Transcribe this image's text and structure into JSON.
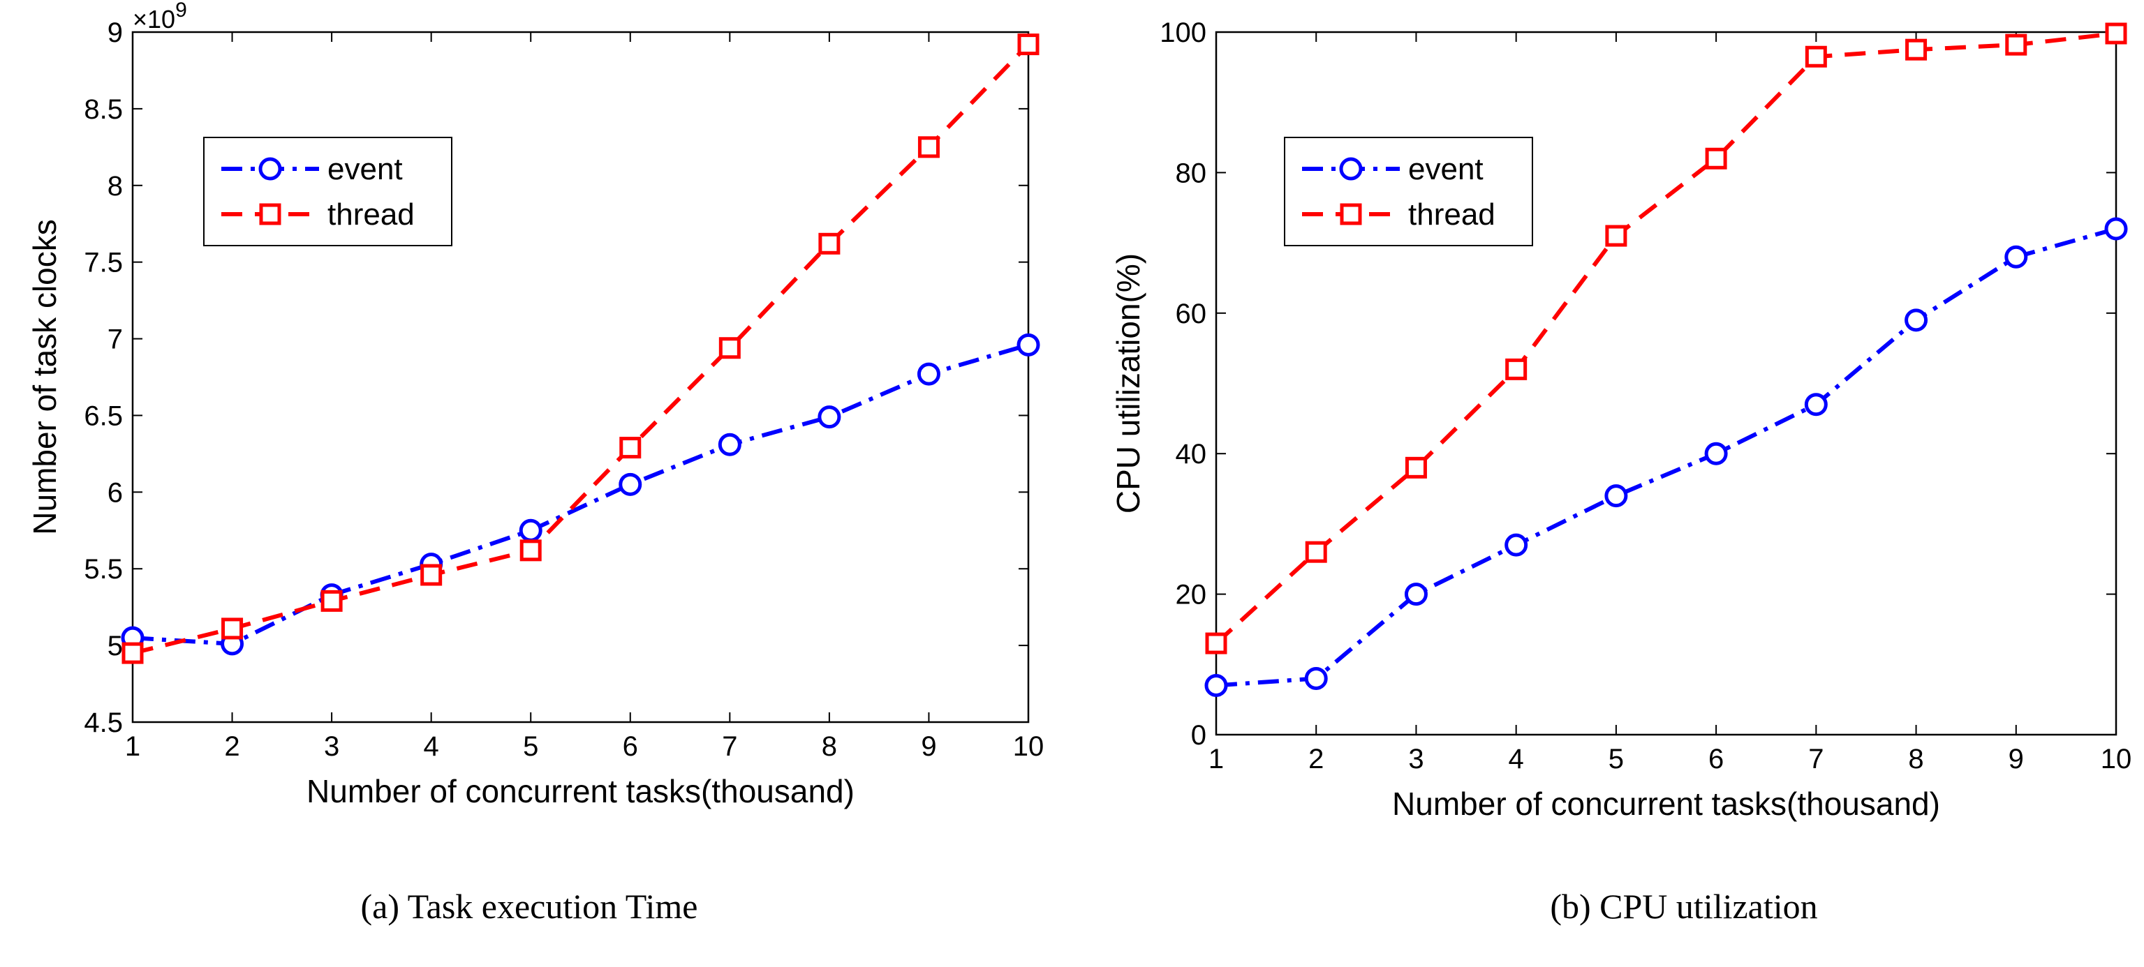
{
  "chart_data": [
    {
      "type": "line",
      "caption": "(a) Task execution Time",
      "xlabel": "Number of concurrent tasks(thousand)",
      "ylabel": "Number of task clocks",
      "y_exponent": "×10",
      "y_exponent_power": "9",
      "x": [
        1,
        2,
        3,
        4,
        5,
        6,
        7,
        8,
        9,
        10
      ],
      "xlim": [
        1,
        10
      ],
      "ylim": [
        4.5,
        9
      ],
      "xticks": [
        1,
        2,
        3,
        4,
        5,
        6,
        7,
        8,
        9,
        10
      ],
      "xtick_labels": [
        "1",
        "2",
        "3",
        "4",
        "5",
        "6",
        "7",
        "8",
        "9",
        "10"
      ],
      "yticks": [
        4.5,
        5,
        5.5,
        6,
        6.5,
        7,
        7.5,
        8,
        8.5,
        9
      ],
      "ytick_labels": [
        "4.5",
        "5",
        "5.5",
        "6",
        "6.5",
        "7",
        "7.5",
        "8",
        "8.5",
        "9"
      ],
      "legend_position": "top-left",
      "series": [
        {
          "name": "event",
          "color": "#0000ff",
          "marker": "circle",
          "dash": "dash-dot",
          "values": [
            5.05,
            5.01,
            5.33,
            5.53,
            5.75,
            6.05,
            6.31,
            6.49,
            6.77,
            6.96
          ]
        },
        {
          "name": "thread",
          "color": "#ff0000",
          "marker": "square",
          "dash": "dashed",
          "values": [
            4.95,
            5.11,
            5.29,
            5.46,
            5.62,
            6.29,
            6.94,
            7.62,
            8.25,
            8.92
          ]
        }
      ]
    },
    {
      "type": "line",
      "caption": "(b) CPU utilization",
      "xlabel": "Number of concurrent tasks(thousand)",
      "ylabel": "CPU utilization(%)",
      "x": [
        1,
        2,
        3,
        4,
        5,
        6,
        7,
        8,
        9,
        10
      ],
      "xlim": [
        1,
        10
      ],
      "ylim": [
        0,
        100
      ],
      "xticks": [
        1,
        2,
        3,
        4,
        5,
        6,
        7,
        8,
        9,
        10
      ],
      "xtick_labels": [
        "1",
        "2",
        "3",
        "4",
        "5",
        "6",
        "7",
        "8",
        "9",
        "10"
      ],
      "yticks": [
        0,
        20,
        40,
        60,
        80,
        100
      ],
      "ytick_labels": [
        "0",
        "20",
        "40",
        "60",
        "80",
        "100"
      ],
      "legend_position": "top-left",
      "series": [
        {
          "name": "event",
          "color": "#0000ff",
          "marker": "circle",
          "dash": "dash-dot",
          "values": [
            7,
            8,
            20,
            27,
            34,
            40,
            47,
            59,
            68,
            72
          ]
        },
        {
          "name": "thread",
          "color": "#ff0000",
          "marker": "square",
          "dash": "dashed",
          "values": [
            13,
            26,
            38,
            52,
            71,
            82,
            96.5,
            97.5,
            98.2,
            99.8
          ]
        }
      ]
    }
  ]
}
